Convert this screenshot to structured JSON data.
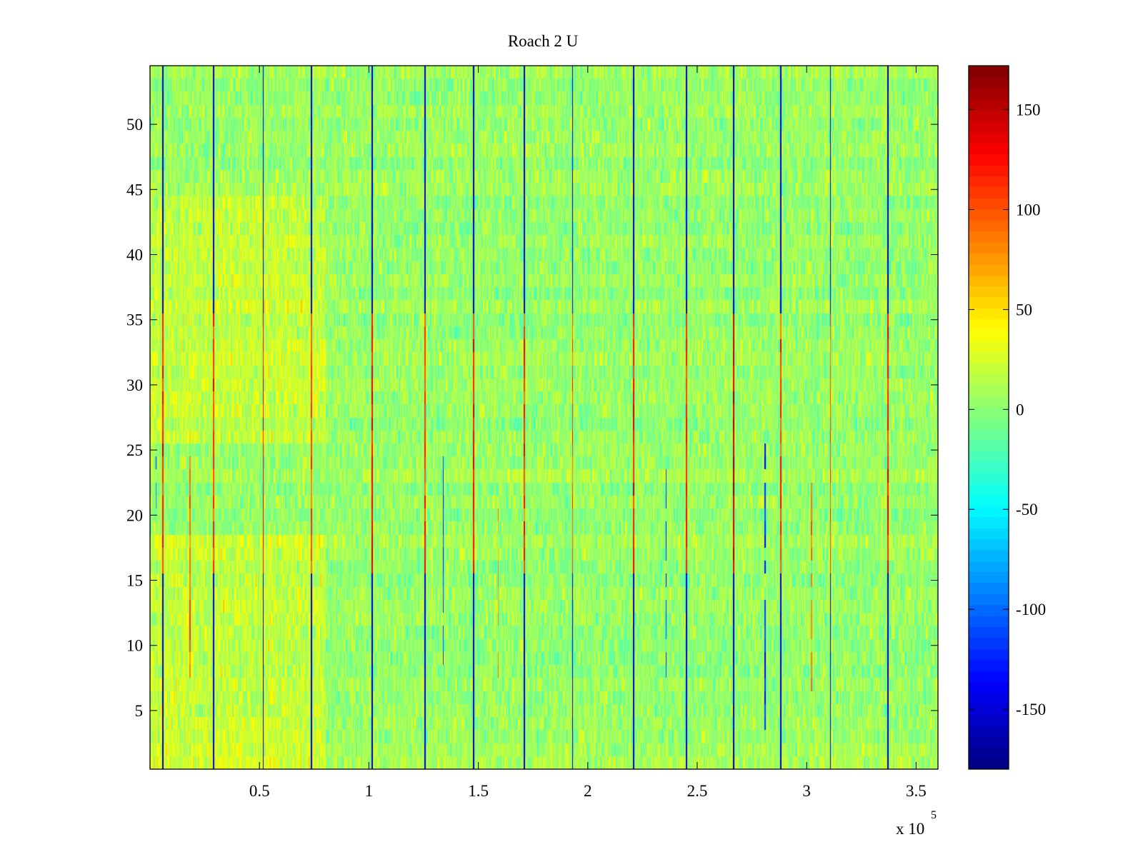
{
  "chart_data": {
    "type": "heatmap",
    "title": "Roach 2 U",
    "xlabel": "",
    "ylabel": "",
    "x_exponent_label": "x 10",
    "x_exponent_power": "5",
    "xlim": [
      0,
      360000
    ],
    "ylim": [
      0.5,
      54.5
    ],
    "x_ticks": [
      50000,
      100000,
      150000,
      200000,
      250000,
      300000,
      350000
    ],
    "x_tick_labels": [
      "0.5",
      "1",
      "1.5",
      "2",
      "2.5",
      "3",
      "3.5"
    ],
    "y_ticks": [
      5,
      10,
      15,
      20,
      25,
      30,
      35,
      40,
      45,
      50
    ],
    "y_tick_labels": [
      "5",
      "10",
      "15",
      "20",
      "25",
      "30",
      "35",
      "40",
      "45",
      "50"
    ],
    "colorbar": {
      "colormap": "jet",
      "clim": [
        -180,
        172
      ],
      "ticks": [
        -150,
        -100,
        -50,
        0,
        50,
        100,
        150
      ],
      "tick_labels": [
        "-150",
        "-100",
        "-50",
        "0",
        "50",
        "100",
        "150"
      ]
    },
    "background_mean": 5,
    "background_spread": 18,
    "rows": 54,
    "stripes": [
      {
        "x": 6000,
        "bottom_rows": [
          1,
          15
        ],
        "top_rows": [
          36,
          54
        ],
        "bottom_value": -160,
        "mid_value": 120
      },
      {
        "x": 29000,
        "bottom_rows": [
          1,
          15
        ],
        "top_rows": [
          36,
          54
        ],
        "bottom_value": -150,
        "mid_value": 110
      },
      {
        "x": 51500,
        "bottom_rows": [
          1,
          15
        ],
        "top_rows": [
          36,
          54
        ],
        "bottom_value": -165,
        "mid_value": 140
      },
      {
        "x": 74000,
        "bottom_rows": [
          1,
          15
        ],
        "top_rows": [
          36,
          54
        ],
        "bottom_value": -150,
        "mid_value": 100
      },
      {
        "x": 101500,
        "bottom_rows": [
          1,
          15
        ],
        "top_rows": [
          36,
          54
        ],
        "bottom_value": -160,
        "mid_value": 130
      },
      {
        "x": 126000,
        "bottom_rows": [
          1,
          15
        ],
        "top_rows": [
          36,
          54
        ],
        "bottom_value": -150,
        "mid_value": 110
      },
      {
        "x": 148000,
        "bottom_rows": [
          1,
          15
        ],
        "top_rows": [
          36,
          54
        ],
        "bottom_value": -160,
        "mid_value": 125
      },
      {
        "x": 171000,
        "bottom_rows": [
          1,
          15
        ],
        "top_rows": [
          36,
          54
        ],
        "bottom_value": -150,
        "mid_value": 115
      },
      {
        "x": 193000,
        "bottom_rows": [
          1,
          15
        ],
        "top_rows": [
          36,
          54
        ],
        "bottom_value": -155,
        "mid_value": 105
      },
      {
        "x": 221000,
        "bottom_rows": [
          1,
          15
        ],
        "top_rows": [
          36,
          54
        ],
        "bottom_value": -155,
        "mid_value": 120
      },
      {
        "x": 245000,
        "bottom_rows": [
          1,
          15
        ],
        "top_rows": [
          36,
          54
        ],
        "bottom_value": -150,
        "mid_value": 115
      },
      {
        "x": 266500,
        "bottom_rows": [
          1,
          15
        ],
        "top_rows": [
          36,
          54
        ],
        "bottom_value": -165,
        "mid_value": 150
      },
      {
        "x": 288500,
        "bottom_rows": [
          1,
          15
        ],
        "top_rows": [
          36,
          54
        ],
        "bottom_value": -150,
        "mid_value": 110
      },
      {
        "x": 311000,
        "bottom_rows": [
          1,
          15
        ],
        "top_rows": [
          36,
          54
        ],
        "bottom_value": -150,
        "mid_value": 105
      },
      {
        "x": 337000,
        "bottom_rows": [
          1,
          15
        ],
        "top_rows": [
          36,
          54
        ],
        "bottom_value": -160,
        "mid_value": 125
      }
    ],
    "thin_lines": [
      {
        "x": 3000,
        "rows": [
          20,
          24
        ],
        "value": -100
      },
      {
        "x": 18500,
        "rows": [
          8,
          24
        ],
        "value": 90
      },
      {
        "x": 134000,
        "rows": [
          8,
          24
        ],
        "value": -120
      },
      {
        "x": 159000,
        "rows": [
          8,
          24
        ],
        "value": 80
      },
      {
        "x": 236000,
        "rows": [
          8,
          24
        ],
        "value": -120
      },
      {
        "x": 281000,
        "rows": [
          4,
          26
        ],
        "value": -120
      },
      {
        "x": 302000,
        "rows": [
          6,
          22
        ],
        "value": 90
      }
    ]
  }
}
